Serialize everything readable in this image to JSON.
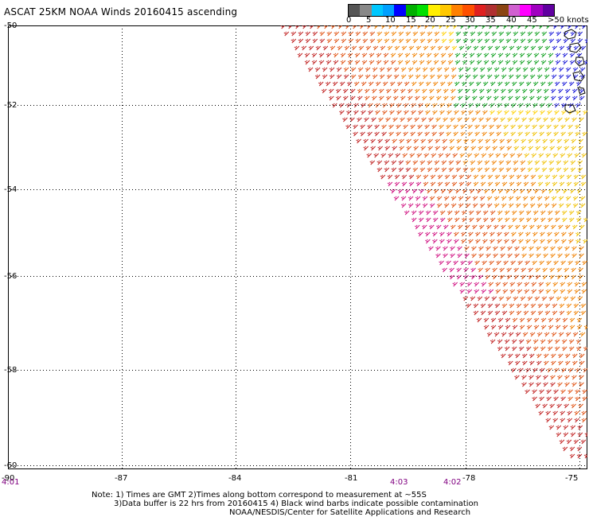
{
  "title": "ASCAT 25KM NOAA Winds 20160415 ascending",
  "legend": {
    "colors": [
      "#555555",
      "#888888",
      "#00c8ff",
      "#00a0ff",
      "#0000ff",
      "#00b000",
      "#00e000",
      "#ffee00",
      "#ffc800",
      "#ff8000",
      "#ff5000",
      "#e02020",
      "#b03030",
      "#8b4513",
      "#d060d0",
      "#ff00ff",
      "#a000c0",
      "#6000a0"
    ],
    "labels": [
      "0",
      "5",
      "10",
      "15",
      "20",
      "25",
      "30",
      "35",
      "40",
      "45"
    ],
    "unit_label": ">50 knots"
  },
  "lat_labels": [
    "-50",
    "-52",
    "-54",
    "-56",
    "-58",
    "-60"
  ],
  "lon_labels": [
    "-90",
    "-87",
    "-84",
    "-81",
    "-78",
    "-75"
  ],
  "time_labels": [
    {
      "text": "4:01"
    },
    {
      "text": "4:03"
    },
    {
      "text": "4:02"
    }
  ],
  "notes": {
    "line1": "Note: 1) Times are GMT 2)Times along bottom correspond to measurement at ~55S",
    "line2": "3)Data buffer is 22 hrs from 20160415 4) Black wind barbs indicate possible contamination",
    "line3": "NOAA/NESDIS/Center for Satellite Applications and Research"
  }
}
